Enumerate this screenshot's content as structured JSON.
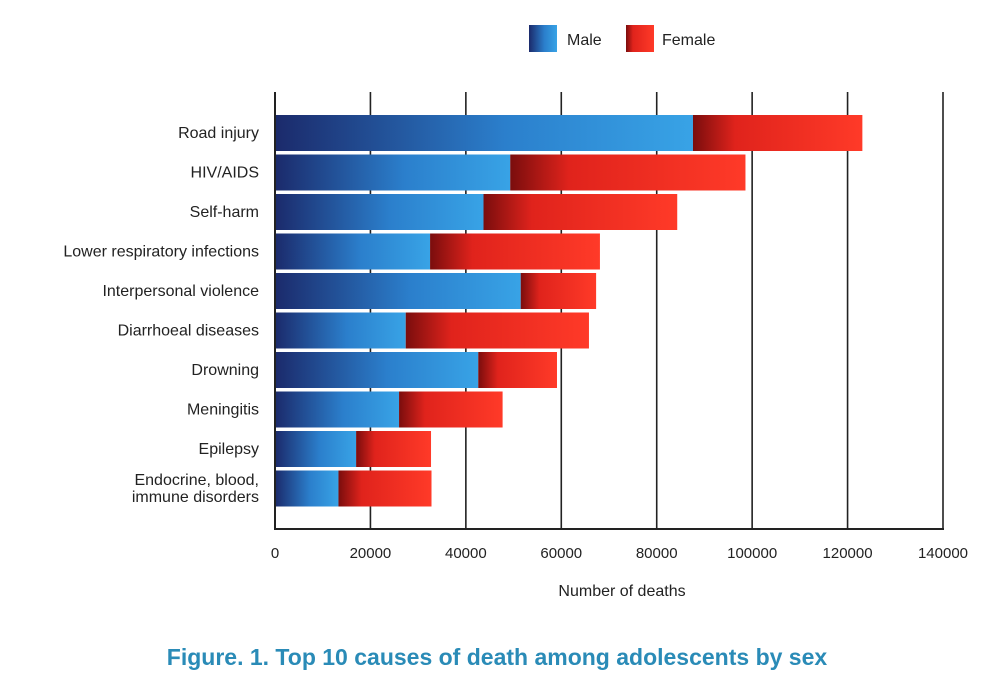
{
  "caption": "Figure. 1. Top 10 causes of death among adolescents by sex",
  "chart_data": {
    "type": "bar",
    "orientation": "horizontal",
    "stacked": true,
    "title": "",
    "xlabel": "Number of deaths",
    "ylabel": "",
    "xlim": [
      0,
      140000
    ],
    "xticks": [
      0,
      20000,
      40000,
      60000,
      80000,
      100000,
      120000,
      140000
    ],
    "grid": true,
    "legend_position": "top",
    "categories": [
      "Road injury",
      "HIV/AIDS",
      "Self-harm",
      "Lower respiratory infections",
      "Interpersonal violence",
      "Diarrhoeal diseases",
      "Drowning",
      "Meningitis",
      "Epilepsy",
      "Endocrine, blood, immune disorders"
    ],
    "category_lines": [
      [
        "Road injury"
      ],
      [
        "HIV/AIDS"
      ],
      [
        "Self-harm"
      ],
      [
        "Lower respiratory infections"
      ],
      [
        "Interpersonal violence"
      ],
      [
        "Diarrhoeal diseases"
      ],
      [
        "Drowning"
      ],
      [
        "Meningitis"
      ],
      [
        "Epilepsy"
      ],
      [
        "Endocrine, blood,",
        "immune disorders"
      ]
    ],
    "series": [
      {
        "name": "Male",
        "color": "#2a8ad0",
        "values": [
          87600,
          49300,
          43700,
          32500,
          51500,
          27400,
          42600,
          26000,
          17000,
          13300
        ]
      },
      {
        "name": "Female",
        "color": "#ff3322",
        "values": [
          35500,
          49300,
          40600,
          35600,
          15800,
          38400,
          16500,
          21700,
          15700,
          19500
        ]
      }
    ]
  }
}
